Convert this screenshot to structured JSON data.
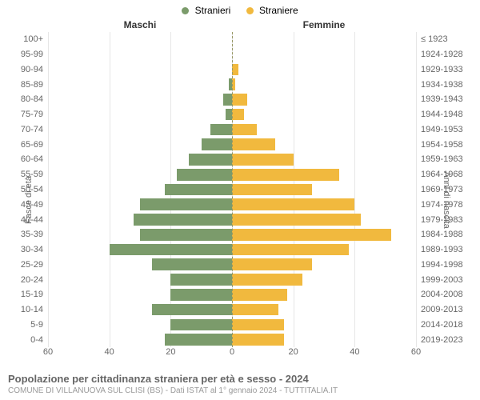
{
  "legend": {
    "male": {
      "label": "Stranieri",
      "color": "#7b9b6b"
    },
    "female": {
      "label": "Straniere",
      "color": "#f1b93e"
    }
  },
  "gender_headers": {
    "male": "Maschi",
    "female": "Femmine"
  },
  "axis_titles": {
    "left": "Fasce di età",
    "right": "Anni di nascita"
  },
  "chart": {
    "type": "population-pyramid",
    "xlim": 60,
    "xticks": [
      60,
      40,
      20,
      0,
      20,
      40,
      60
    ],
    "grid_color": "#e6e6e6",
    "center_line_color": "#999966",
    "background_color": "#ffffff",
    "bar_colors": {
      "male": "#7b9b6b",
      "female": "#f1b93e"
    },
    "label_fontsize": 11,
    "label_color": "#666666",
    "rows": [
      {
        "age": "100+",
        "birth": "≤ 1923",
        "m": 0,
        "f": 0
      },
      {
        "age": "95-99",
        "birth": "1924-1928",
        "m": 0,
        "f": 0
      },
      {
        "age": "90-94",
        "birth": "1929-1933",
        "m": 0,
        "f": 2
      },
      {
        "age": "85-89",
        "birth": "1934-1938",
        "m": 1,
        "f": 1
      },
      {
        "age": "80-84",
        "birth": "1939-1943",
        "m": 3,
        "f": 5
      },
      {
        "age": "75-79",
        "birth": "1944-1948",
        "m": 2,
        "f": 4
      },
      {
        "age": "70-74",
        "birth": "1949-1953",
        "m": 7,
        "f": 8
      },
      {
        "age": "65-69",
        "birth": "1954-1958",
        "m": 10,
        "f": 14
      },
      {
        "age": "60-64",
        "birth": "1959-1963",
        "m": 14,
        "f": 20
      },
      {
        "age": "55-59",
        "birth": "1964-1968",
        "m": 18,
        "f": 35
      },
      {
        "age": "50-54",
        "birth": "1969-1973",
        "m": 22,
        "f": 26
      },
      {
        "age": "45-49",
        "birth": "1974-1978",
        "m": 30,
        "f": 40
      },
      {
        "age": "40-44",
        "birth": "1979-1983",
        "m": 32,
        "f": 42
      },
      {
        "age": "35-39",
        "birth": "1984-1988",
        "m": 30,
        "f": 52
      },
      {
        "age": "30-34",
        "birth": "1989-1993",
        "m": 40,
        "f": 38
      },
      {
        "age": "25-29",
        "birth": "1994-1998",
        "m": 26,
        "f": 26
      },
      {
        "age": "20-24",
        "birth": "1999-2003",
        "m": 20,
        "f": 23
      },
      {
        "age": "15-19",
        "birth": "2004-2008",
        "m": 20,
        "f": 18
      },
      {
        "age": "10-14",
        "birth": "2009-2013",
        "m": 26,
        "f": 15
      },
      {
        "age": "5-9",
        "birth": "2014-2018",
        "m": 20,
        "f": 17
      },
      {
        "age": "0-4",
        "birth": "2019-2023",
        "m": 22,
        "f": 17
      }
    ]
  },
  "footer": {
    "title": "Popolazione per cittadinanza straniera per età e sesso - 2024",
    "subtitle": "COMUNE DI VILLANUOVA SUL CLISI (BS) - Dati ISTAT al 1° gennaio 2024 - TUTTITALIA.IT"
  }
}
